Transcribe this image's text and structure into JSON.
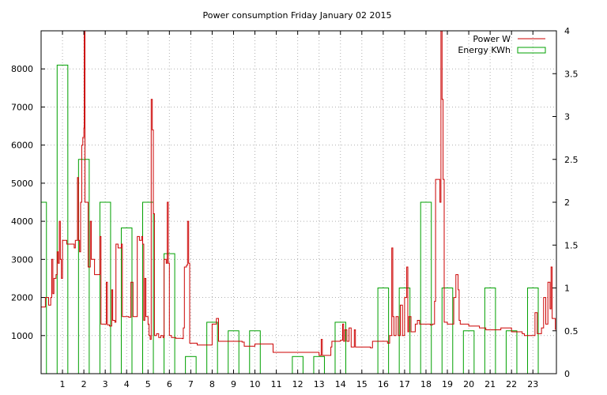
{
  "chart_data": {
    "type": "bar+line",
    "title": "Power consumption Friday January 02 2015",
    "xlabel": "",
    "ylabel": "",
    "y2label": "",
    "x_range": [
      0,
      24.1
    ],
    "ylim": [
      0,
      9000
    ],
    "y2lim": [
      0,
      4
    ],
    "x_ticks": [
      1,
      2,
      3,
      4,
      5,
      6,
      7,
      8,
      9,
      10,
      11,
      12,
      13,
      14,
      15,
      16,
      17,
      18,
      19,
      20,
      21,
      22,
      23
    ],
    "y_ticks": [
      1000,
      2000,
      3000,
      4000,
      5000,
      6000,
      7000,
      8000
    ],
    "y2_ticks": [
      0,
      0.5,
      1,
      1.5,
      2,
      2.5,
      3,
      3.5,
      4
    ],
    "grid": true,
    "legend_position": "top-right",
    "series": [
      {
        "name": "Power W",
        "axis": "y",
        "style": "line",
        "color": "#cc0000",
        "points": [
          [
            0,
            1750
          ],
          [
            0.2,
            1750
          ],
          [
            0.2,
            2000
          ],
          [
            0.35,
            1800
          ],
          [
            0.45,
            2000
          ],
          [
            0.5,
            3000
          ],
          [
            0.55,
            2100
          ],
          [
            0.6,
            2500
          ],
          [
            0.7,
            2600
          ],
          [
            0.75,
            3200
          ],
          [
            0.8,
            2900
          ],
          [
            0.85,
            4000
          ],
          [
            0.9,
            3000
          ],
          [
            0.95,
            2500
          ],
          [
            1.0,
            3500
          ],
          [
            1.1,
            3500
          ],
          [
            1.2,
            3400
          ],
          [
            1.4,
            3400
          ],
          [
            1.55,
            3300
          ],
          [
            1.6,
            3500
          ],
          [
            1.7,
            5150
          ],
          [
            1.75,
            3500
          ],
          [
            1.8,
            3200
          ],
          [
            1.85,
            4500
          ],
          [
            1.9,
            6000
          ],
          [
            1.95,
            6200
          ],
          [
            2.0,
            6450
          ],
          [
            2.02,
            9000
          ],
          [
            2.05,
            4500
          ],
          [
            2.1,
            4500
          ],
          [
            2.2,
            2800
          ],
          [
            2.3,
            4000
          ],
          [
            2.35,
            3000
          ],
          [
            2.4,
            3000
          ],
          [
            2.5,
            2600
          ],
          [
            2.65,
            2600
          ],
          [
            2.75,
            3600
          ],
          [
            2.8,
            1300
          ],
          [
            3.0,
            1300
          ],
          [
            3.05,
            2400
          ],
          [
            3.1,
            1280
          ],
          [
            3.2,
            1250
          ],
          [
            3.3,
            2200
          ],
          [
            3.35,
            1400
          ],
          [
            3.45,
            1350
          ],
          [
            3.5,
            3400
          ],
          [
            3.6,
            3300
          ],
          [
            3.75,
            3400
          ],
          [
            3.8,
            1500
          ],
          [
            4.0,
            1500
          ],
          [
            4.1,
            1480
          ],
          [
            4.2,
            2400
          ],
          [
            4.3,
            1500
          ],
          [
            4.4,
            1500
          ],
          [
            4.5,
            3600
          ],
          [
            4.6,
            3500
          ],
          [
            4.7,
            3600
          ],
          [
            4.75,
            3400
          ],
          [
            4.8,
            1400
          ],
          [
            4.85,
            2500
          ],
          [
            4.9,
            1500
          ],
          [
            5.0,
            1300
          ],
          [
            5.05,
            1000
          ],
          [
            5.1,
            900
          ],
          [
            5.15,
            7200
          ],
          [
            5.2,
            6400
          ],
          [
            5.25,
            4200
          ],
          [
            5.3,
            1000
          ],
          [
            5.4,
            1050
          ],
          [
            5.5,
            950
          ],
          [
            5.6,
            1000
          ],
          [
            5.7,
            950
          ],
          [
            5.75,
            3000
          ],
          [
            5.85,
            2900
          ],
          [
            5.9,
            4500
          ],
          [
            5.95,
            2900
          ],
          [
            6.0,
            1000
          ],
          [
            6.1,
            950
          ],
          [
            6.3,
            930
          ],
          [
            6.6,
            920
          ],
          [
            6.65,
            1200
          ],
          [
            6.7,
            2800
          ],
          [
            6.8,
            2850
          ],
          [
            6.85,
            4000
          ],
          [
            6.9,
            2900
          ],
          [
            6.95,
            800
          ],
          [
            7.1,
            800
          ],
          [
            7.3,
            750
          ],
          [
            7.6,
            750
          ],
          [
            7.9,
            750
          ],
          [
            8.0,
            1300
          ],
          [
            8.1,
            1300
          ],
          [
            8.2,
            1450
          ],
          [
            8.3,
            850
          ],
          [
            8.6,
            850
          ],
          [
            9.0,
            850
          ],
          [
            9.4,
            830
          ],
          [
            9.5,
            720
          ],
          [
            9.9,
            720
          ],
          [
            10.0,
            780
          ],
          [
            10.5,
            780
          ],
          [
            10.8,
            780
          ],
          [
            10.85,
            560
          ],
          [
            11.5,
            560
          ],
          [
            12.0,
            560
          ],
          [
            12.5,
            560
          ],
          [
            12.9,
            560
          ],
          [
            13.0,
            480
          ],
          [
            13.1,
            900
          ],
          [
            13.15,
            480
          ],
          [
            13.5,
            480
          ],
          [
            13.55,
            700
          ],
          [
            13.6,
            850
          ],
          [
            13.7,
            850
          ],
          [
            14.0,
            880
          ],
          [
            14.1,
            1300
          ],
          [
            14.15,
            850
          ],
          [
            14.2,
            1150
          ],
          [
            14.3,
            850
          ],
          [
            14.4,
            1200
          ],
          [
            14.5,
            700
          ],
          [
            14.65,
            1150
          ],
          [
            14.7,
            700
          ],
          [
            15.0,
            700
          ],
          [
            15.4,
            680
          ],
          [
            15.5,
            850
          ],
          [
            15.8,
            850
          ],
          [
            16.1,
            850
          ],
          [
            16.2,
            800
          ],
          [
            16.3,
            1000
          ],
          [
            16.4,
            3300
          ],
          [
            16.45,
            1500
          ],
          [
            16.5,
            1000
          ],
          [
            16.6,
            1500
          ],
          [
            16.7,
            1000
          ],
          [
            16.8,
            1800
          ],
          [
            16.9,
            1000
          ],
          [
            17.0,
            2000
          ],
          [
            17.1,
            2800
          ],
          [
            17.15,
            1100
          ],
          [
            17.2,
            1500
          ],
          [
            17.3,
            1100
          ],
          [
            17.4,
            1100
          ],
          [
            17.5,
            1300
          ],
          [
            17.6,
            1400
          ],
          [
            17.7,
            1300
          ],
          [
            18.0,
            1300
          ],
          [
            18.2,
            1280
          ],
          [
            18.3,
            1300
          ],
          [
            18.4,
            1900
          ],
          [
            18.45,
            5100
          ],
          [
            18.6,
            5100
          ],
          [
            18.65,
            4500
          ],
          [
            18.7,
            9000
          ],
          [
            18.75,
            7200
          ],
          [
            18.8,
            5100
          ],
          [
            18.85,
            1350
          ],
          [
            19.0,
            1300
          ],
          [
            19.2,
            1300
          ],
          [
            19.3,
            2000
          ],
          [
            19.4,
            2600
          ],
          [
            19.5,
            2200
          ],
          [
            19.55,
            1400
          ],
          [
            19.6,
            1300
          ],
          [
            19.8,
            1300
          ],
          [
            20.0,
            1250
          ],
          [
            20.5,
            1200
          ],
          [
            20.8,
            1150
          ],
          [
            21.0,
            1150
          ],
          [
            21.5,
            1200
          ],
          [
            21.8,
            1200
          ],
          [
            22.0,
            1100
          ],
          [
            22.4,
            1100
          ],
          [
            22.5,
            1050
          ],
          [
            22.6,
            1000
          ],
          [
            23.0,
            1000
          ],
          [
            23.1,
            1600
          ],
          [
            23.2,
            1050
          ],
          [
            23.4,
            1200
          ],
          [
            23.5,
            2000
          ],
          [
            23.6,
            1300
          ],
          [
            23.7,
            2400
          ],
          [
            23.8,
            1700
          ],
          [
            23.85,
            2800
          ],
          [
            23.9,
            1450
          ],
          [
            24.05,
            1150
          ]
        ]
      },
      {
        "name": "Energy KWh",
        "axis": "y2",
        "style": "step-bars",
        "color": "#00a000",
        "bar_centers": [
          0,
          1,
          2,
          3,
          4,
          5,
          6,
          7,
          8,
          9,
          10,
          11,
          12,
          13,
          14,
          15,
          16,
          17,
          18,
          19,
          20,
          21,
          22,
          23
        ],
        "values": [
          2.0,
          3.6,
          2.5,
          2.0,
          1.7,
          2.0,
          1.4,
          0.2,
          0.6,
          0.5,
          0.5,
          0.0,
          0.2,
          0.2,
          0.6,
          0.0,
          1.0,
          1.0,
          2.0,
          1.0,
          0.5,
          1.0,
          0.5,
          1.0
        ]
      }
    ],
    "colors": {
      "power": "#cc0000",
      "energy": "#00a000",
      "grid": "#b0b0b0"
    }
  }
}
